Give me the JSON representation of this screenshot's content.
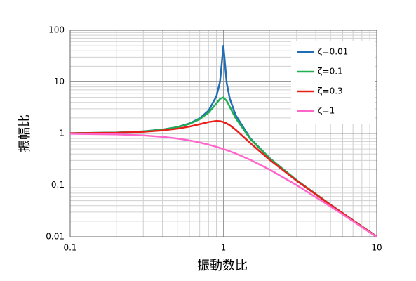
{
  "chart_data": {
    "type": "line",
    "x_label": "振動数比",
    "y_label": "振幅比",
    "xscale": "log",
    "yscale": "log",
    "xlim": [
      0.1,
      10
    ],
    "ylim": [
      0.01,
      100
    ],
    "xticks": [
      0.1,
      1,
      10
    ],
    "yticks": [
      0.01,
      0.1,
      1,
      10,
      100
    ],
    "grid": true,
    "minor_grid": true,
    "legend": "upper right",
    "x": [
      0.1,
      0.2,
      0.3,
      0.4,
      0.5,
      0.6,
      0.7,
      0.8,
      0.9,
      0.95,
      1,
      1.05,
      1.1,
      1.2,
      1.5,
      2,
      3,
      5,
      7,
      10
    ],
    "series": [
      {
        "name": "ζ=0.01",
        "color": "#1f6db4",
        "values": [
          1.0101,
          1.0417,
          1.0989,
          1.1905,
          1.3333,
          1.5622,
          1.96,
          2.775,
          5.24,
          10.07,
          50,
          9.558,
          4.736,
          2.269,
          0.7998,
          0.3333,
          0.125,
          0.04167,
          0.02083,
          0.0101
        ]
      },
      {
        "name": "ζ=0.1",
        "color": "#1fae50",
        "values": [
          1.0099,
          1.0408,
          1.0965,
          1.1851,
          1.3216,
          1.5357,
          1.8908,
          2.538,
          3.821,
          4.683,
          5,
          4.279,
          3.288,
          1.9952,
          0.7779,
          0.3304,
          0.12465,
          0.04163,
          0.02082,
          0.0101
        ]
      },
      {
        "name": "ζ=0.3",
        "color": "#e8201a",
        "values": [
          1.0083,
          1.0336,
          1.078,
          1.1447,
          1.238,
          1.3618,
          1.5136,
          1.6667,
          1.7469,
          1.7293,
          1.6667,
          1.5667,
          1.4438,
          1.1851,
          0.6492,
          0.3095,
          0.12195,
          0.04134,
          0.02075,
          0.01008
        ]
      },
      {
        "name": "ζ=1",
        "color": "#ff66cc",
        "values": [
          0.99,
          0.9615,
          0.9174,
          0.8621,
          0.8,
          0.7353,
          0.6711,
          0.6098,
          0.5525,
          0.5256,
          0.5,
          0.4756,
          0.4525,
          0.4098,
          0.3077,
          0.2,
          0.1,
          0.03846,
          0.02,
          0.0099
        ]
      }
    ]
  }
}
